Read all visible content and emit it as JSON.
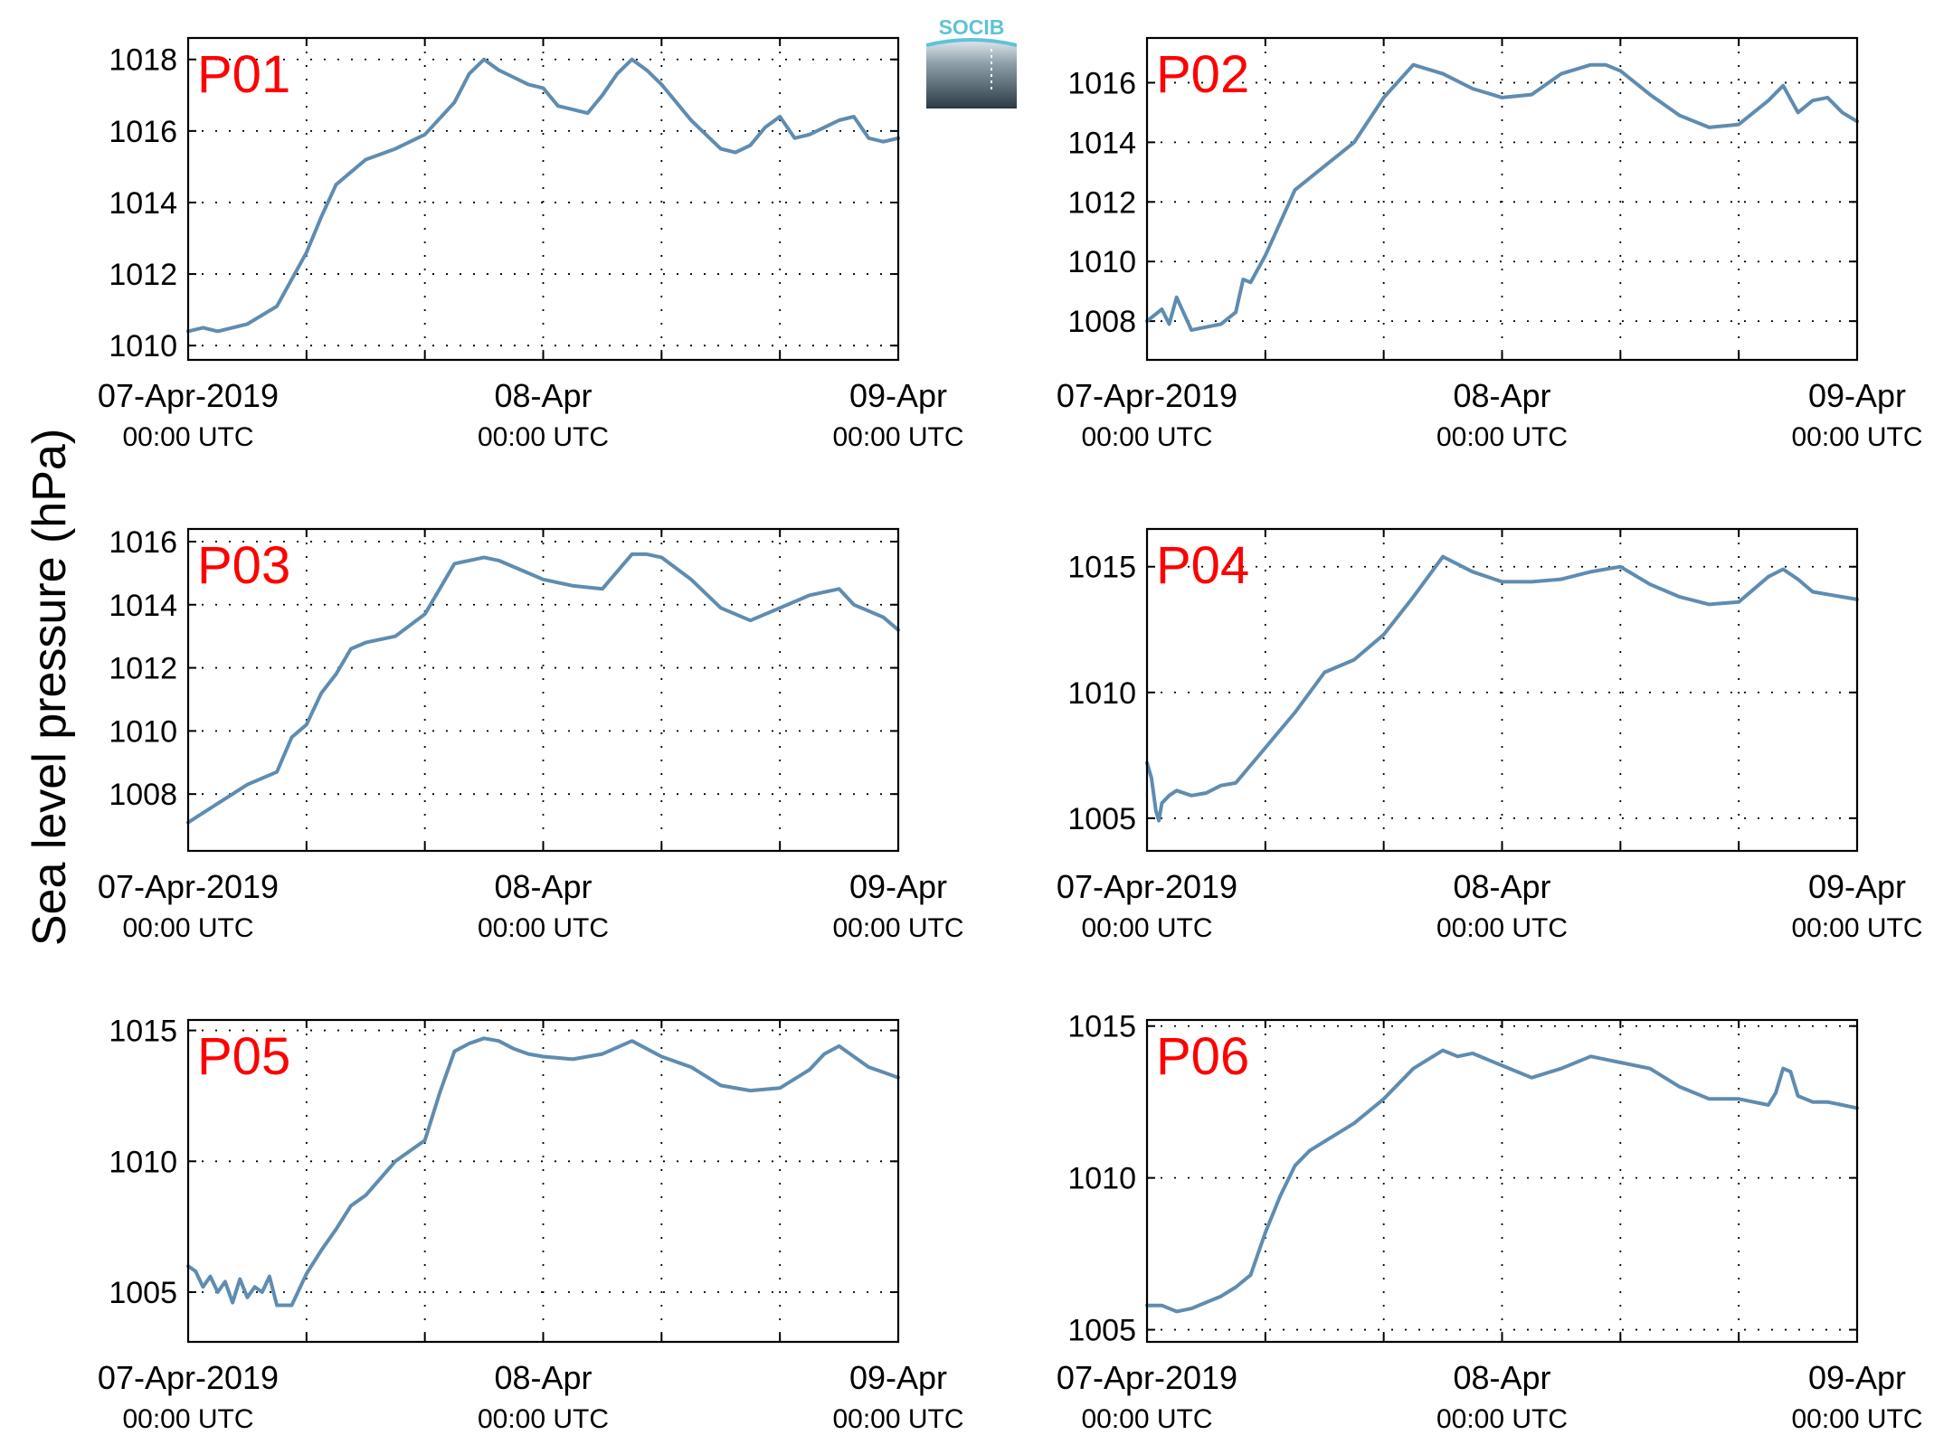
{
  "ylabel": "Sea level pressure (hPa)",
  "line_color": "#5f8cb0",
  "station_color": "#ff0000",
  "logo": {
    "text": "SOCIB",
    "text_color": "#5fc3d4"
  },
  "x_ticks": [
    {
      "top": "07-Apr-2019",
      "bottom": "00:00 UTC"
    },
    {
      "top": "08-Apr",
      "bottom": "00:00 UTC"
    },
    {
      "top": "09-Apr",
      "bottom": "00:00 UTC"
    }
  ],
  "chart_data": [
    {
      "type": "line",
      "station": "P01",
      "xlim": [
        0,
        48
      ],
      "ylim": [
        1009.6,
        1018.6
      ],
      "yticks": [
        1010,
        1012,
        1014,
        1016,
        1018
      ],
      "grid": true,
      "x": [
        0,
        1,
        2,
        4,
        6,
        8,
        9,
        10,
        12,
        14,
        16,
        18,
        19,
        20,
        21,
        22,
        23,
        24,
        25,
        26,
        27,
        28,
        29,
        30,
        31,
        32,
        33,
        34,
        35,
        36,
        37,
        38,
        39,
        40,
        41,
        42,
        43,
        44,
        45,
        46,
        47,
        48
      ],
      "values": [
        1010.4,
        1010.5,
        1010.4,
        1010.6,
        1011.1,
        1012.6,
        1013.6,
        1014.5,
        1015.2,
        1015.5,
        1015.9,
        1016.8,
        1017.6,
        1018.0,
        1017.7,
        1017.5,
        1017.3,
        1017.2,
        1016.7,
        1016.6,
        1016.5,
        1017.0,
        1017.6,
        1018.0,
        1017.7,
        1017.3,
        1016.8,
        1016.3,
        1015.9,
        1015.5,
        1015.4,
        1015.6,
        1016.1,
        1016.4,
        1015.8,
        1015.9,
        1016.1,
        1016.3,
        1016.4,
        1015.8,
        1015.7,
        1015.8
      ]
    },
    {
      "type": "line",
      "station": "P02",
      "xlim": [
        0,
        48
      ],
      "ylim": [
        1006.7,
        1017.5
      ],
      "yticks": [
        1008,
        1010,
        1012,
        1014,
        1016
      ],
      "grid": true,
      "x": [
        0,
        1,
        1.5,
        2,
        3,
        4,
        5,
        6,
        6.5,
        7,
        8,
        10,
        12,
        14,
        16,
        18,
        20,
        22,
        24,
        26,
        28,
        30,
        31,
        32,
        33,
        34,
        36,
        38,
        40,
        42,
        43,
        44,
        45,
        46,
        47,
        48
      ],
      "values": [
        1008.0,
        1008.4,
        1007.9,
        1008.8,
        1007.7,
        1007.8,
        1007.9,
        1008.3,
        1009.4,
        1009.3,
        1010.2,
        1012.4,
        1013.2,
        1014.0,
        1015.5,
        1016.6,
        1016.3,
        1015.8,
        1015.5,
        1015.6,
        1016.3,
        1016.6,
        1016.6,
        1016.4,
        1016.0,
        1015.6,
        1014.9,
        1014.5,
        1014.6,
        1015.4,
        1015.9,
        1015.0,
        1015.4,
        1015.5,
        1015.0,
        1014.7
      ]
    },
    {
      "type": "line",
      "station": "P03",
      "xlim": [
        0,
        48
      ],
      "ylim": [
        1006.2,
        1016.4
      ],
      "yticks": [
        1008,
        1010,
        1012,
        1014,
        1016
      ],
      "grid": true,
      "x": [
        0,
        2,
        4,
        6,
        7,
        8,
        9,
        10,
        11,
        12,
        14,
        16,
        18,
        19,
        20,
        21,
        22,
        24,
        26,
        28,
        30,
        31,
        32,
        34,
        36,
        38,
        40,
        42,
        44,
        45,
        46,
        47,
        48
      ],
      "values": [
        1007.1,
        1007.7,
        1008.3,
        1008.7,
        1009.8,
        1010.2,
        1011.2,
        1011.8,
        1012.6,
        1012.8,
        1013.0,
        1013.7,
        1015.3,
        1015.4,
        1015.5,
        1015.4,
        1015.2,
        1014.8,
        1014.6,
        1014.5,
        1015.6,
        1015.6,
        1015.5,
        1014.8,
        1013.9,
        1013.5,
        1013.9,
        1014.3,
        1014.5,
        1014.0,
        1013.8,
        1013.6,
        1013.2
      ]
    },
    {
      "type": "line",
      "station": "P04",
      "xlim": [
        0,
        48
      ],
      "ylim": [
        1003.7,
        1016.5
      ],
      "yticks": [
        1005,
        1010,
        1015
      ],
      "grid": true,
      "x": [
        0,
        0.3,
        0.6,
        0.8,
        1,
        1.5,
        2,
        3,
        4,
        5,
        6,
        7,
        8,
        10,
        12,
        14,
        16,
        18,
        20,
        22,
        24,
        26,
        28,
        30,
        32,
        34,
        36,
        38,
        40,
        42,
        43,
        44,
        45,
        46,
        47,
        48
      ],
      "values": [
        1007.2,
        1006.6,
        1005.3,
        1004.9,
        1005.6,
        1005.9,
        1006.1,
        1005.9,
        1006.0,
        1006.3,
        1006.4,
        1007.1,
        1007.8,
        1009.2,
        1010.8,
        1011.3,
        1012.3,
        1013.8,
        1015.4,
        1014.8,
        1014.4,
        1014.4,
        1014.5,
        1014.8,
        1015.0,
        1014.3,
        1013.8,
        1013.5,
        1013.6,
        1014.6,
        1014.9,
        1014.5,
        1014.0,
        1013.9,
        1013.8,
        1013.7
      ]
    },
    {
      "type": "line",
      "station": "P05",
      "xlim": [
        0,
        48
      ],
      "ylim": [
        1003.1,
        1015.4
      ],
      "yticks": [
        1005,
        1010,
        1015
      ],
      "grid": true,
      "x": [
        0,
        0.5,
        1,
        1.5,
        2,
        2.5,
        3,
        3.5,
        4,
        4.5,
        5,
        5.5,
        6,
        7,
        8,
        9,
        10,
        11,
        12,
        14,
        16,
        17,
        18,
        19,
        20,
        21,
        22,
        23,
        24,
        26,
        28,
        30,
        32,
        34,
        36,
        38,
        40,
        42,
        43,
        44,
        45,
        46,
        47,
        48
      ],
      "values": [
        1006.0,
        1005.8,
        1005.2,
        1005.6,
        1005.0,
        1005.4,
        1004.6,
        1005.5,
        1004.8,
        1005.2,
        1005.0,
        1005.6,
        1004.5,
        1004.5,
        1005.7,
        1006.6,
        1007.4,
        1008.3,
        1008.7,
        1010.0,
        1010.8,
        1012.6,
        1014.2,
        1014.5,
        1014.7,
        1014.6,
        1014.3,
        1014.1,
        1014.0,
        1013.9,
        1014.1,
        1014.6,
        1014.0,
        1013.6,
        1012.9,
        1012.7,
        1012.8,
        1013.5,
        1014.1,
        1014.4,
        1014.0,
        1013.6,
        1013.4,
        1013.2
      ]
    },
    {
      "type": "line",
      "station": "P06",
      "xlim": [
        0,
        48
      ],
      "ylim": [
        1004.6,
        1015.2
      ],
      "yticks": [
        1005,
        1010,
        1015
      ],
      "grid": true,
      "x": [
        0,
        1,
        2,
        3,
        4,
        5,
        6,
        7,
        8,
        9,
        10,
        11,
        12,
        14,
        16,
        18,
        20,
        21,
        22,
        24,
        26,
        28,
        30,
        32,
        34,
        36,
        38,
        40,
        41,
        42,
        42.5,
        43,
        43.5,
        44,
        45,
        46,
        47,
        48
      ],
      "values": [
        1005.8,
        1005.8,
        1005.6,
        1005.7,
        1005.9,
        1006.1,
        1006.4,
        1006.8,
        1008.2,
        1009.4,
        1010.4,
        1010.9,
        1011.2,
        1011.8,
        1012.6,
        1013.6,
        1014.2,
        1014.0,
        1014.1,
        1013.7,
        1013.3,
        1013.6,
        1014.0,
        1013.8,
        1013.6,
        1013.0,
        1012.6,
        1012.6,
        1012.5,
        1012.4,
        1012.8,
        1013.6,
        1013.5,
        1012.7,
        1012.5,
        1012.5,
        1012.4,
        1012.3
      ]
    }
  ]
}
